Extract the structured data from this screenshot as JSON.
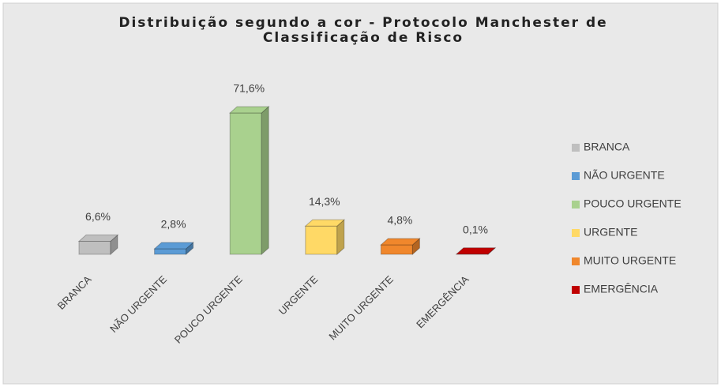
{
  "chart_data": {
    "type": "bar3d",
    "title": "Distribuição segundo a cor - Protocolo Manchester de Classificação de Risco",
    "categories": [
      "BRANCA",
      "NÃO URGENTE",
      "POUCO URGENTE",
      "URGENTE",
      "MUITO URGENTE",
      "EMERGÊNCIA"
    ],
    "values": [
      6.6,
      2.8,
      71.6,
      14.3,
      4.8,
      0.1
    ],
    "value_labels": [
      "6,6%",
      "2,8%",
      "71,6%",
      "14,3%",
      "4,8%",
      "0,1%"
    ],
    "colors": [
      "#bfbfbf",
      "#5b9bd5",
      "#a9d18e",
      "#ffd966",
      "#f0872c",
      "#c00000"
    ],
    "legend": "right"
  }
}
